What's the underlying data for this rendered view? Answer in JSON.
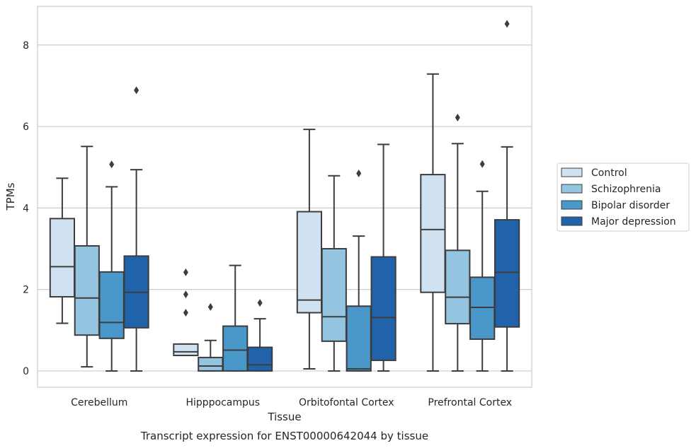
{
  "chart_data": {
    "type": "box",
    "xlabel": "Tissue",
    "ylabel": "TPMs",
    "caption": "Transcript expression for ENST00000642044 by tissue",
    "ylim": [
      -0.4,
      8.95
    ],
    "yticks": [
      0,
      2,
      4,
      6,
      8
    ],
    "grid": "horizontal",
    "legend_position": "right",
    "categories": [
      "Cerebellum",
      "Hipppocampus",
      "Orbitofontal Cortex",
      "Prefrontal Cortex"
    ],
    "series": [
      {
        "name": "Control",
        "color": "#d0e1f2",
        "boxes": [
          {
            "whislo": 1.17,
            "q1": 1.82,
            "med": 2.56,
            "q3": 3.74,
            "whishi": 4.73,
            "fliers": []
          },
          {
            "whislo": 0.38,
            "q1": 0.38,
            "med": 0.47,
            "q3": 0.66,
            "whishi": 0.66,
            "fliers": [
              1.43,
              1.88,
              2.42
            ]
          },
          {
            "whislo": 0.05,
            "q1": 1.43,
            "med": 1.74,
            "q3": 3.91,
            "whishi": 5.93,
            "fliers": []
          },
          {
            "whislo": 0.0,
            "q1": 1.93,
            "med": 3.47,
            "q3": 4.82,
            "whishi": 7.29,
            "fliers": []
          }
        ]
      },
      {
        "name": "Schizophrenia",
        "color": "#94c4df",
        "boxes": [
          {
            "whislo": 0.1,
            "q1": 0.88,
            "med": 1.79,
            "q3": 3.07,
            "whishi": 5.51,
            "fliers": []
          },
          {
            "whislo": 0.0,
            "q1": 0.0,
            "med": 0.12,
            "q3": 0.33,
            "whishi": 0.75,
            "fliers": [
              1.57
            ]
          },
          {
            "whislo": 0.0,
            "q1": 0.73,
            "med": 1.33,
            "q3": 3.0,
            "whishi": 4.79,
            "fliers": []
          },
          {
            "whislo": 0.0,
            "q1": 1.16,
            "med": 1.81,
            "q3": 2.96,
            "whishi": 5.58,
            "fliers": [
              6.22
            ]
          }
        ]
      },
      {
        "name": "Bipolar disorder",
        "color": "#4a98c9",
        "boxes": [
          {
            "whislo": 0.0,
            "q1": 0.8,
            "med": 1.19,
            "q3": 2.43,
            "whishi": 4.52,
            "fliers": [
              5.07
            ]
          },
          {
            "whislo": 0.0,
            "q1": 0.0,
            "med": 0.51,
            "q3": 1.1,
            "whishi": 2.59,
            "fliers": []
          },
          {
            "whislo": 0.0,
            "q1": 0.0,
            "med": 0.05,
            "q3": 1.59,
            "whishi": 3.31,
            "fliers": [
              4.85
            ]
          },
          {
            "whislo": 0.0,
            "q1": 0.78,
            "med": 1.56,
            "q3": 2.3,
            "whishi": 4.41,
            "fliers": [
              5.08
            ]
          }
        ]
      },
      {
        "name": "Major depression",
        "color": "#2163aa",
        "boxes": [
          {
            "whislo": 0.0,
            "q1": 1.06,
            "med": 1.93,
            "q3": 2.82,
            "whishi": 4.94,
            "fliers": [
              6.89
            ]
          },
          {
            "whislo": 0.0,
            "q1": 0.0,
            "med": 0.15,
            "q3": 0.58,
            "whishi": 1.28,
            "fliers": [
              1.67
            ]
          },
          {
            "whislo": 0.0,
            "q1": 0.26,
            "med": 1.31,
            "q3": 2.8,
            "whishi": 5.56,
            "fliers": []
          },
          {
            "whislo": 0.0,
            "q1": 1.08,
            "med": 2.42,
            "q3": 3.71,
            "whishi": 5.5,
            "fliers": [
              8.52
            ]
          }
        ]
      }
    ]
  }
}
